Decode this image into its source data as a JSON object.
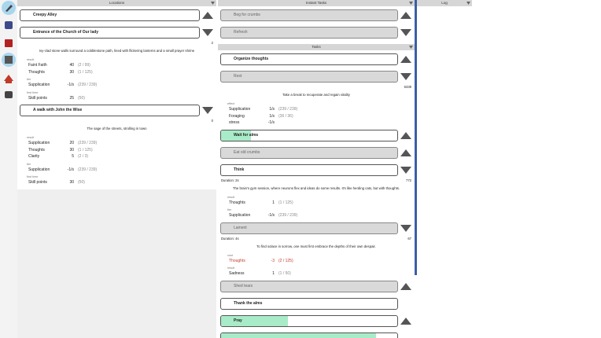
{
  "locations": {
    "title": "Locations",
    "items": [
      {
        "label": "Creepy Alley",
        "state": "enabled",
        "arrow": "up"
      },
      {
        "label": "Entrance of the Church of Our lady",
        "state": "enabled",
        "arrow": "down",
        "count": "2",
        "description": "Ivy-clad stone walls surround a cobblestone path, lined with flickering lanterns and a small prayer shrine",
        "sections": [
          {
            "title": "result",
            "rows": [
              {
                "name": "Faint Faith",
                "amount": "40",
                "cap": "(2 / 99)"
              },
              {
                "name": "Thoughts",
                "amount": "30",
                "cap": "(1 / 125)"
              }
            ]
          },
          {
            "title": "tier",
            "rows": [
              {
                "name": "Supplication",
                "amount": "-1/s",
                "cap": "(239 / 239)"
              }
            ]
          },
          {
            "title": "first time",
            "rows": [
              {
                "name": "Skill points",
                "amount": "25",
                "cap": "(50)"
              }
            ]
          }
        ]
      },
      {
        "label": "A walk with John the Wise",
        "state": "enabled",
        "arrow": "down",
        "count": "0",
        "description": "The sage of the streets, strolling in town",
        "sections": [
          {
            "title": "result",
            "rows": [
              {
                "name": "Supplication",
                "amount": "20",
                "cap": "(239 / 239)"
              },
              {
                "name": "Thoughts",
                "amount": "30",
                "cap": "(1 / 125)"
              },
              {
                "name": "Clarity",
                "amount": "5",
                "cap": "(2 / 3)"
              }
            ]
          },
          {
            "title": "tier",
            "rows": [
              {
                "name": "Supplication",
                "amount": "-1/s",
                "cap": "(239 / 239)"
              }
            ]
          },
          {
            "title": "first time",
            "rows": [
              {
                "name": "Skill points",
                "amount": "30",
                "cap": "(50)"
              }
            ]
          }
        ]
      }
    ]
  },
  "instant_tasks": {
    "title": "Instant Tasks",
    "items": [
      {
        "label": "Beg for crumbs",
        "state": "disabled",
        "arrow": "up"
      },
      {
        "label": "Refresh",
        "state": "disabled",
        "arrow": "down"
      }
    ]
  },
  "tasks": {
    "title": "Tasks",
    "items": [
      {
        "label": "Organize thoughts",
        "state": "enabled",
        "arrow": "up"
      },
      {
        "label": "Rest",
        "state": "disabled",
        "arrow": "down",
        "count": "6339",
        "description": "Take a break to recuperate and regain vitality",
        "sections": [
          {
            "title": "effect",
            "rows": [
              {
                "name": "Supplication",
                "amount": "1/s",
                "cap": "(239 / 239)"
              },
              {
                "name": "Foraging",
                "amount": "1/s",
                "cap": "(36 / 36)"
              },
              {
                "name": "stress",
                "amount": "-1/s"
              }
            ]
          }
        ]
      },
      {
        "label": "Wait for alms",
        "state": "enabled",
        "arrow": "up",
        "progress": 0.17
      },
      {
        "label": "Eat old crumbs",
        "state": "disabled",
        "arrow": "up"
      },
      {
        "label": "Think",
        "state": "enabled",
        "arrow": "down",
        "duration": "Duration: 2s",
        "count": "772",
        "description": "The brain's gym session, where neurons flex and ideas do some results. It's like herding cats, but with thoughts.",
        "sections": [
          {
            "title": "result",
            "rows": [
              {
                "name": "Thoughts",
                "amount": "1",
                "cap": "(1 / 125)"
              }
            ]
          },
          {
            "title": "tier",
            "rows": [
              {
                "name": "Supplication",
                "amount": "-1/s",
                "cap": "(239 / 239)"
              }
            ]
          }
        ]
      },
      {
        "label": "Lament",
        "state": "disabled",
        "arrow": "down",
        "duration": "Duration: 4s",
        "count": "67",
        "description": "To find solace in sorrow, one must first embrace the depths of their own despair.",
        "sections": [
          {
            "title": "cost",
            "rows": [
              {
                "name": "Thoughts",
                "amount": "-3",
                "cap": "(2 / 125)",
                "color": "#c0392b"
              }
            ]
          },
          {
            "title": "result",
            "rows": [
              {
                "name": "Sadness",
                "amount": "1",
                "cap": "(1 / 50)"
              }
            ]
          }
        ]
      },
      {
        "label": "Shed tears",
        "state": "disabled",
        "arrow": "up"
      },
      {
        "label": "Thank the alms",
        "state": "enabled"
      },
      {
        "label": "Pray",
        "state": "enabled",
        "arrow": "up",
        "progress": 0.38
      },
      {
        "label": "",
        "state": "enabled",
        "progress": 0.88
      }
    ]
  },
  "log": {
    "title": "Log"
  }
}
